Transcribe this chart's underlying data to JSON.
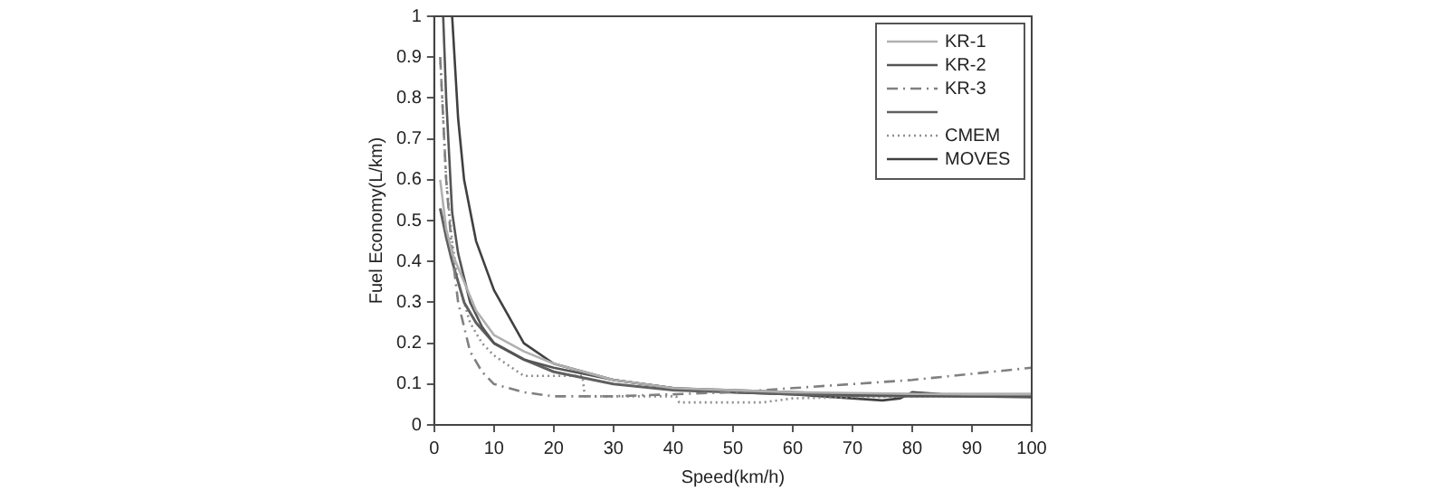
{
  "chart_data": {
    "type": "line",
    "xlabel": "Speed(km/h)",
    "ylabel": "Fuel Economy(L/km)",
    "xlim": [
      0,
      100
    ],
    "xticks": [
      0,
      10,
      20,
      30,
      40,
      50,
      60,
      70,
      80,
      90,
      100
    ],
    "ylim": [
      0,
      1
    ],
    "yticks": [
      0,
      0.1,
      0.2,
      0.3,
      0.4,
      0.5,
      0.6,
      0.7,
      0.8,
      0.9,
      1
    ],
    "grid": false,
    "legend": "top right",
    "marker": "none",
    "series": [
      {
        "name": "KR-1",
        "color": "#b0b0b0",
        "line_style": "solid",
        "x": [
          1,
          2,
          3,
          5,
          7,
          10,
          15,
          20,
          30,
          40,
          50,
          60,
          70,
          80,
          90,
          100
        ],
        "values": [
          0.6,
          0.48,
          0.42,
          0.35,
          0.28,
          0.22,
          0.18,
          0.15,
          0.11,
          0.09,
          0.085,
          0.08,
          0.078,
          0.076,
          0.075,
          0.075
        ]
      },
      {
        "name": "KR-2",
        "color": "#555555",
        "line_style": "solid",
        "x": [
          1.5,
          2,
          3,
          4,
          6,
          8,
          10,
          15,
          20,
          30,
          40,
          50,
          60,
          70,
          80,
          90,
          100
        ],
        "values": [
          1,
          0.8,
          0.52,
          0.42,
          0.3,
          0.24,
          0.2,
          0.16,
          0.14,
          0.11,
          0.09,
          0.085,
          0.08,
          0.075,
          0.072,
          0.07,
          0.07
        ]
      },
      {
        "name": "KR-3",
        "color": "#808080",
        "line_style": "dashed",
        "x": [
          1,
          2,
          3,
          4,
          6,
          8,
          10,
          15,
          20,
          30,
          40,
          50,
          60,
          70,
          80,
          90,
          100
        ],
        "values": [
          0.9,
          0.6,
          0.42,
          0.3,
          0.18,
          0.13,
          0.1,
          0.08,
          0.07,
          0.07,
          0.075,
          0.08,
          0.09,
          0.1,
          0.11,
          0.125,
          0.14
        ]
      },
      {
        "color": "#606060",
        "line_style": "solid",
        "x": [
          1,
          2,
          3,
          5,
          7,
          10,
          15,
          20,
          30,
          40,
          50,
          60,
          70,
          80,
          90,
          100
        ],
        "values": [
          0.53,
          0.46,
          0.4,
          0.3,
          0.25,
          0.2,
          0.16,
          0.13,
          0.1,
          0.085,
          0.08,
          0.075,
          0.072,
          0.07,
          0.07,
          0.068
        ]
      },
      {
        "name": "CMEM",
        "color": "#909090",
        "line_style": "dotted",
        "x": [
          1,
          2,
          3,
          4,
          6,
          8,
          10,
          15,
          24.8,
          25.2,
          35,
          40.5,
          41,
          55,
          60,
          70,
          80,
          90,
          100
        ],
        "values": [
          0.9,
          0.6,
          0.45,
          0.35,
          0.25,
          0.2,
          0.17,
          0.12,
          0.12,
          0.07,
          0.07,
          0.07,
          0.055,
          0.055,
          0.065,
          0.068,
          0.07,
          0.07,
          0.07
        ]
      },
      {
        "name": "MOVES",
        "color": "#404040",
        "line_style": "solid",
        "x": [
          3,
          4,
          5,
          7,
          10,
          15,
          20,
          30,
          40,
          50,
          60,
          70,
          75,
          78,
          80,
          85,
          90,
          100
        ],
        "values": [
          1,
          0.75,
          0.6,
          0.45,
          0.33,
          0.2,
          0.15,
          0.11,
          0.09,
          0.08,
          0.075,
          0.065,
          0.06,
          0.065,
          0.08,
          0.075,
          0.075,
          0.075
        ]
      }
    ]
  }
}
